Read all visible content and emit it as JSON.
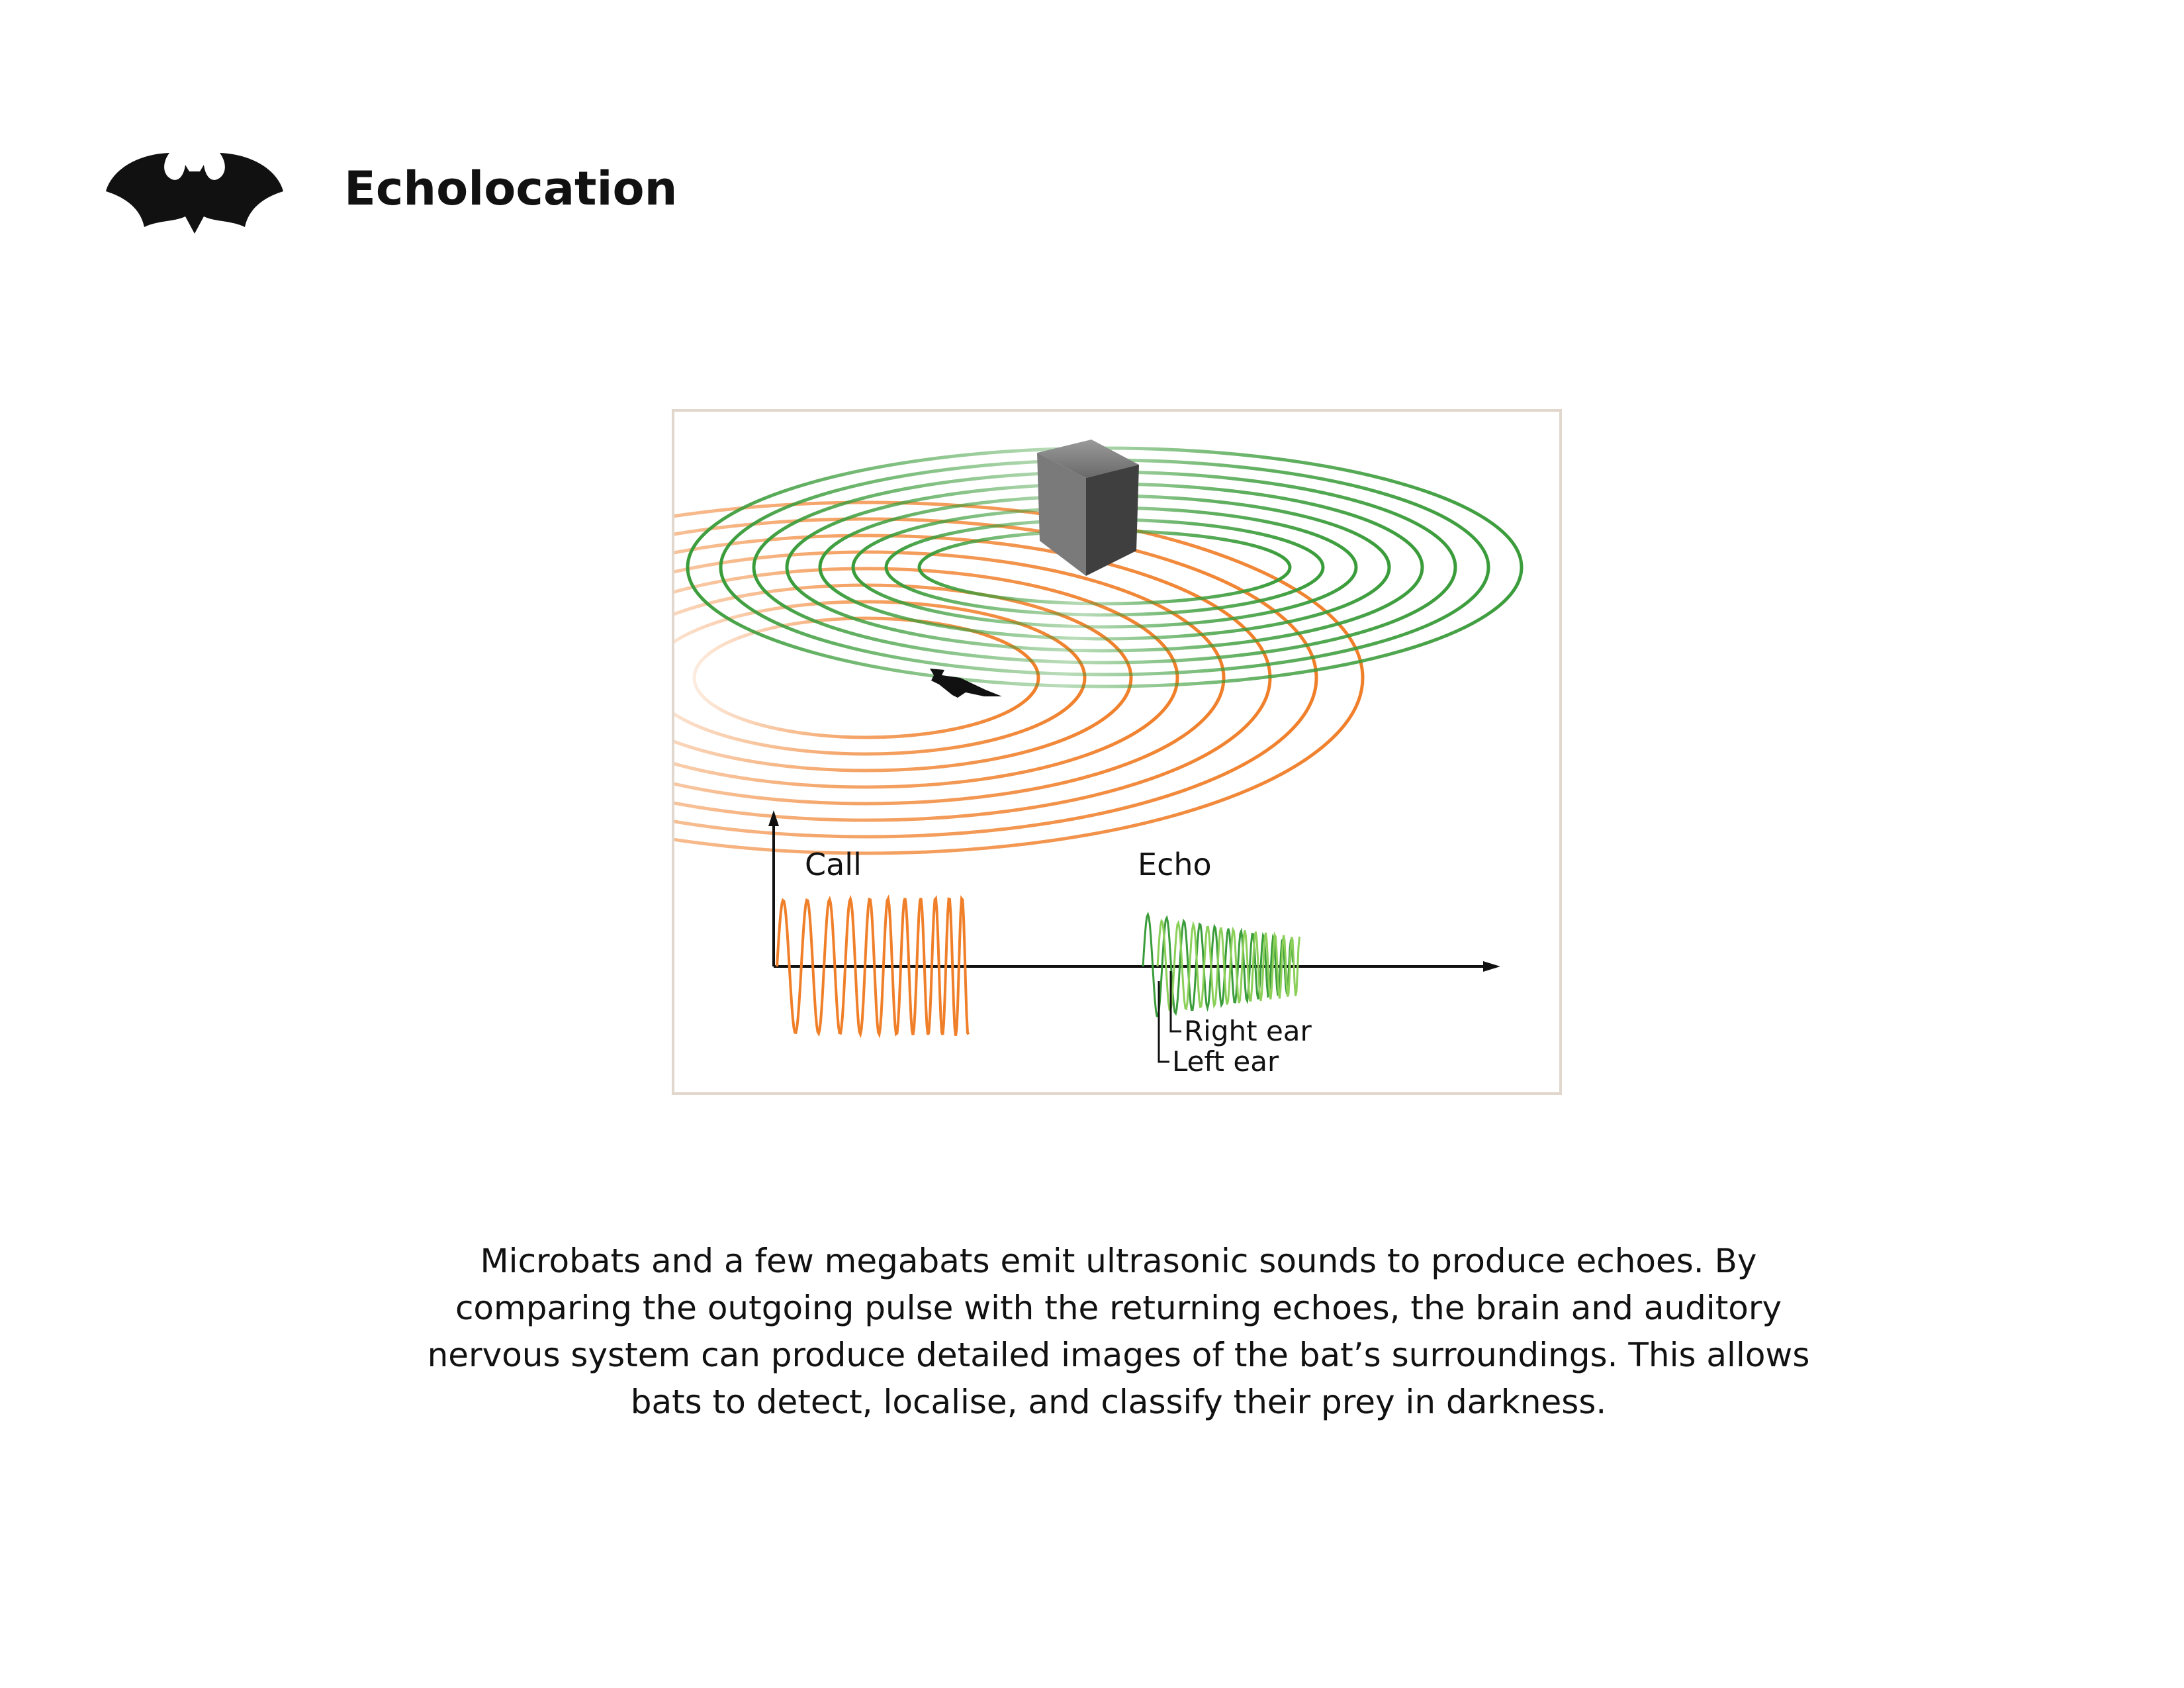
{
  "header": {
    "title": "Echolocation",
    "logo_icon": "bat-logo-icon"
  },
  "figure": {
    "labels": {
      "call": "Call",
      "echo": "Echo",
      "right_ear": "Right ear",
      "left_ear": "Left ear"
    },
    "colors": {
      "call_wave": "#f07f2a",
      "echo_wave": "#3a9c3a",
      "echo_wave_light": "#8cd05a",
      "object": "#4a4a4a",
      "frame": "#e2d7cd"
    }
  },
  "caption": {
    "text": "Microbats and a few megabats emit ultrasonic sounds to produce echoes. By comparing the outgoing pulse with the returning echoes, the brain and auditory nervous system can produce detailed images of the bat’s surroundings. This allows bats to detect, localise, and classify their prey in darkness."
  }
}
